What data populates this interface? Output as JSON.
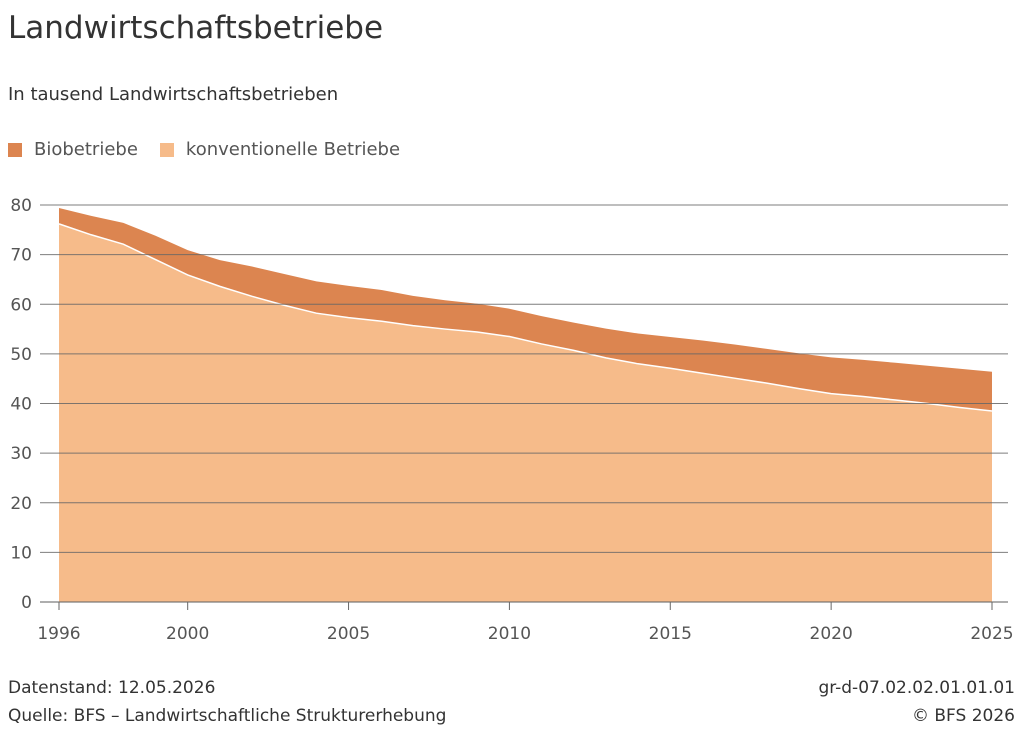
{
  "title": "Landwirtschaftsbetriebe",
  "subtitle": "In tausend Landwirtschaftsbetrieben",
  "footer": {
    "datenstand": "Datenstand: 12.05.2026",
    "quelle": "Quelle: BFS – Landwirtschaftliche Strukturerhebung",
    "code": "gr-d-07.02.02.01.01.01",
    "copyright": "© BFS 2026"
  },
  "colors": {
    "bio": "#dc8550",
    "konv": "#f6bb8a",
    "grid": "#666666",
    "text": "#333333"
  },
  "chart_data": {
    "type": "area",
    "stacked": true,
    "ylim": [
      0,
      80
    ],
    "yticks": [
      0,
      10,
      20,
      30,
      40,
      50,
      60,
      70,
      80
    ],
    "xlim": [
      1996,
      2025
    ],
    "xticks": [
      1996,
      2000,
      2005,
      2010,
      2015,
      2020,
      2025
    ],
    "grid": true,
    "legend_position": "top-left",
    "x": [
      1996,
      1997,
      1998,
      1999,
      2000,
      2001,
      2002,
      2003,
      2004,
      2005,
      2006,
      2007,
      2008,
      2009,
      2010,
      2011,
      2012,
      2013,
      2014,
      2015,
      2016,
      2017,
      2018,
      2019,
      2020,
      2021,
      2022,
      2023,
      2024,
      2025
    ],
    "series": [
      {
        "name": "Biobetriebe",
        "values": [
          3.2,
          3.8,
          4.3,
          4.8,
          5.0,
          5.3,
          6.0,
          6.3,
          6.4,
          6.4,
          6.3,
          6.0,
          5.8,
          5.7,
          5.6,
          5.6,
          5.6,
          5.9,
          6.1,
          6.3,
          6.6,
          6.8,
          6.9,
          7.1,
          7.3,
          7.4,
          7.5,
          7.6,
          7.8,
          7.9
        ]
      },
      {
        "name": "konventionelle Betriebe",
        "values": [
          76.2,
          74.0,
          72.1,
          69.0,
          65.9,
          63.6,
          61.6,
          59.8,
          58.2,
          57.3,
          56.6,
          55.7,
          55.0,
          54.4,
          53.5,
          52.0,
          50.7,
          49.2,
          48.0,
          47.1,
          46.1,
          45.1,
          44.1,
          43.0,
          42.0,
          41.4,
          40.7,
          40.0,
          39.2,
          38.5
        ]
      }
    ]
  }
}
